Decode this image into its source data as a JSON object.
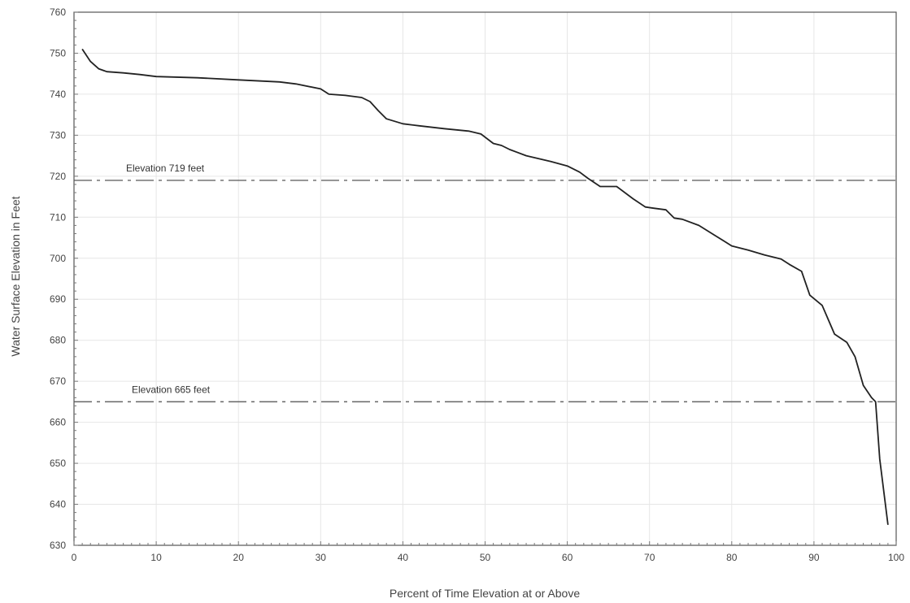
{
  "chart_data": {
    "type": "line",
    "title": "",
    "xlabel": "Percent of Time Elevation at or Above",
    "ylabel": "Water Surface Elevation in Feet",
    "xlim": [
      0,
      100
    ],
    "ylim": [
      630,
      760
    ],
    "x_ticks": [
      0,
      10,
      20,
      30,
      40,
      50,
      60,
      70,
      80,
      90,
      100
    ],
    "y_ticks": [
      630,
      640,
      650,
      660,
      670,
      680,
      690,
      700,
      710,
      720,
      730,
      740,
      750,
      760
    ],
    "grid": true,
    "legend": "none",
    "series": [
      {
        "color": "#222222",
        "points": [
          [
            1,
            751
          ],
          [
            2,
            748
          ],
          [
            3,
            746.2
          ],
          [
            4,
            745.5
          ],
          [
            6,
            745.2
          ],
          [
            8,
            744.8
          ],
          [
            10,
            744.3
          ],
          [
            15,
            744
          ],
          [
            20,
            743.5
          ],
          [
            25,
            743
          ],
          [
            27,
            742.5
          ],
          [
            30,
            741.3
          ],
          [
            31,
            740
          ],
          [
            33,
            739.7
          ],
          [
            35,
            739.2
          ],
          [
            36,
            738.2
          ],
          [
            37,
            736
          ],
          [
            38,
            734
          ],
          [
            40,
            732.8
          ],
          [
            42,
            732.3
          ],
          [
            45,
            731.6
          ],
          [
            48,
            731
          ],
          [
            49.5,
            730.3
          ],
          [
            51,
            728
          ],
          [
            52,
            727.5
          ],
          [
            53,
            726.5
          ],
          [
            55,
            725
          ],
          [
            58,
            723.6
          ],
          [
            60,
            722.5
          ],
          [
            61.5,
            721
          ],
          [
            62.5,
            719.5
          ],
          [
            64,
            717.5
          ],
          [
            66,
            717.5
          ],
          [
            68,
            714.5
          ],
          [
            69.5,
            712.5
          ],
          [
            70.5,
            712.2
          ],
          [
            72,
            711.8
          ],
          [
            73,
            709.8
          ],
          [
            74,
            709.5
          ],
          [
            76,
            708
          ],
          [
            78,
            705.5
          ],
          [
            80,
            703
          ],
          [
            82,
            702
          ],
          [
            84,
            700.8
          ],
          [
            86,
            699.8
          ],
          [
            87,
            698.5
          ],
          [
            88.5,
            696.8
          ],
          [
            89.5,
            691
          ],
          [
            91,
            688.5
          ],
          [
            92.5,
            681.5
          ],
          [
            94,
            679.5
          ],
          [
            95,
            676
          ],
          [
            96,
            669
          ],
          [
            97,
            666
          ],
          [
            97.5,
            665
          ],
          [
            98,
            651
          ],
          [
            99,
            635
          ]
        ]
      }
    ],
    "reference_lines": [
      {
        "y": 719,
        "label": "Elevation 719 feet",
        "color": "#666666"
      },
      {
        "y": 665,
        "label": "Elevation 665 feet",
        "color": "#666666"
      }
    ]
  }
}
